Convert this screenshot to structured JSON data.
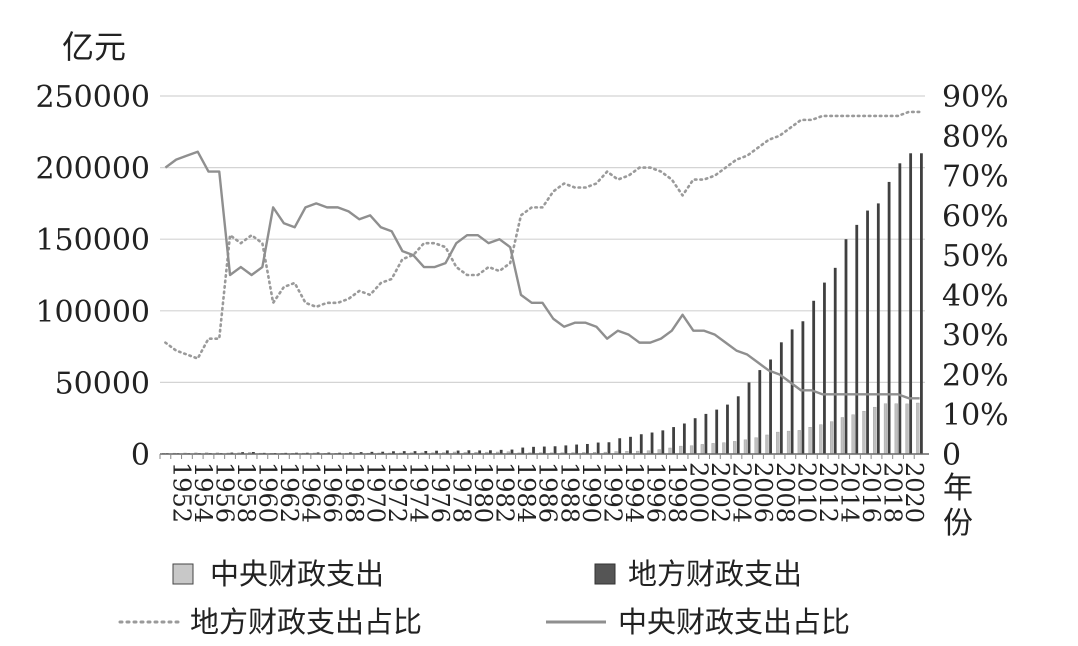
{
  "chart_data": {
    "type": "bar",
    "left_axis_unit": "亿元",
    "x_axis_unit": "年份",
    "left_ylim": [
      0,
      250000
    ],
    "right_ylim": [
      0,
      0.9
    ],
    "left_ticks": [
      "0",
      "50000",
      "100000",
      "150000",
      "200000",
      "250000"
    ],
    "right_ticks": [
      "0",
      "10%",
      "20%",
      "30%",
      "40%",
      "50%",
      "60%",
      "70%",
      "80%",
      "90%"
    ],
    "years": [
      1952,
      1953,
      1954,
      1955,
      1956,
      1957,
      1958,
      1959,
      1960,
      1961,
      1962,
      1963,
      1964,
      1965,
      1966,
      1967,
      1968,
      1969,
      1970,
      1971,
      1972,
      1973,
      1974,
      1975,
      1976,
      1977,
      1978,
      1979,
      1980,
      1981,
      1982,
      1983,
      1984,
      1985,
      1986,
      1987,
      1988,
      1989,
      1990,
      1991,
      1992,
      1993,
      1994,
      1995,
      1996,
      1997,
      1998,
      1999,
      2000,
      2001,
      2002,
      2003,
      2004,
      2005,
      2006,
      2007,
      2008,
      2009,
      2010,
      2011,
      2012,
      2013,
      2014,
      2015,
      2016,
      2017,
      2018,
      2019,
      2020,
      2021,
      2022
    ],
    "year_labels": [
      "1952",
      "1954",
      "1956",
      "1958",
      "1960",
      "1962",
      "1964",
      "1966",
      "1968",
      "1970",
      "1972",
      "1974",
      "1976",
      "1978",
      "1980",
      "1982",
      "1984",
      "1986",
      "1988",
      "1990",
      "1992",
      "1994",
      "1996",
      "1998",
      "2000",
      "2002",
      "2004",
      "2006",
      "2008",
      "2010",
      "2012",
      "2014",
      "2016",
      "2018",
      "2020"
    ],
    "grid": true,
    "legend_position": "bottom",
    "series": [
      {
        "name": "中央财政支出",
        "kind": "bar",
        "axis": "left",
        "color": "#c0c0c0",
        "values": [
          500,
          600,
          700,
          800,
          900,
          800,
          700,
          800,
          1100,
          600,
          400,
          400,
          500,
          600,
          700,
          500,
          400,
          600,
          600,
          600,
          700,
          700,
          700,
          800,
          800,
          900,
          1000,
          1400,
          1100,
          1200,
          1300,
          1400,
          1600,
          800,
          900,
          900,
          800,
          900,
          1000,
          1100,
          1200,
          1300,
          1700,
          1900,
          2000,
          2300,
          3100,
          4200,
          5500,
          5800,
          6700,
          7400,
          7900,
          8800,
          9900,
          11400,
          13300,
          15300,
          16000,
          16500,
          18700,
          20500,
          22600,
          25500,
          27400,
          29900,
          32700,
          35100,
          35100,
          35000,
          35600
        ]
      },
      {
        "name": "地方财政支出",
        "kind": "bar",
        "axis": "left",
        "color": "#404040",
        "values": [
          300,
          400,
          500,
          500,
          600,
          600,
          1000,
          1300,
          1400,
          800,
          700,
          800,
          900,
          900,
          1100,
          1000,
          900,
          1100,
          1300,
          1500,
          1600,
          1900,
          2000,
          2000,
          2100,
          2300,
          2500,
          2400,
          2600,
          2500,
          2600,
          2900,
          3100,
          4500,
          5000,
          5200,
          5400,
          6000,
          6600,
          7000,
          8000,
          8200,
          11000,
          12000,
          13800,
          15000,
          16500,
          18800,
          21300,
          25000,
          28000,
          31000,
          34500,
          40300,
          50000,
          58600,
          66000,
          78000,
          87000,
          92700,
          107000,
          119700,
          130000,
          150000,
          160000,
          170000,
          175000,
          190000,
          203000,
          210000,
          210000
        ]
      },
      {
        "name": "地方财政支出占比",
        "kind": "line",
        "axis": "right",
        "color": "#9a9a9a",
        "dash": "dotted",
        "values": [
          0.28,
          0.26,
          0.25,
          0.24,
          0.29,
          0.29,
          0.55,
          0.53,
          0.55,
          0.53,
          0.38,
          0.42,
          0.43,
          0.38,
          0.37,
          0.38,
          0.38,
          0.39,
          0.41,
          0.4,
          0.43,
          0.44,
          0.49,
          0.5,
          0.53,
          0.53,
          0.52,
          0.47,
          0.45,
          0.45,
          0.47,
          0.46,
          0.48,
          0.6,
          0.62,
          0.62,
          0.66,
          0.68,
          0.67,
          0.67,
          0.68,
          0.71,
          0.69,
          0.7,
          0.72,
          0.72,
          0.71,
          0.69,
          0.65,
          0.69,
          0.69,
          0.7,
          0.72,
          0.74,
          0.75,
          0.77,
          0.79,
          0.8,
          0.82,
          0.84,
          0.84,
          0.85,
          0.85,
          0.85,
          0.85,
          0.85,
          0.85,
          0.85,
          0.85,
          0.86,
          0.86
        ]
      },
      {
        "name": "中央财政支出占比",
        "kind": "line",
        "axis": "right",
        "color": "#8f8f8f",
        "dash": "solid",
        "values": [
          0.72,
          0.74,
          0.75,
          0.76,
          0.71,
          0.71,
          0.45,
          0.47,
          0.45,
          0.47,
          0.62,
          0.58,
          0.57,
          0.62,
          0.63,
          0.62,
          0.62,
          0.61,
          0.59,
          0.6,
          0.57,
          0.56,
          0.51,
          0.5,
          0.47,
          0.47,
          0.48,
          0.53,
          0.55,
          0.55,
          0.53,
          0.54,
          0.52,
          0.4,
          0.38,
          0.38,
          0.34,
          0.32,
          0.33,
          0.33,
          0.32,
          0.29,
          0.31,
          0.3,
          0.28,
          0.28,
          0.29,
          0.31,
          0.35,
          0.31,
          0.31,
          0.3,
          0.28,
          0.26,
          0.25,
          0.23,
          0.21,
          0.2,
          0.18,
          0.16,
          0.16,
          0.15,
          0.15,
          0.15,
          0.15,
          0.15,
          0.15,
          0.15,
          0.15,
          0.14,
          0.14
        ]
      }
    ]
  },
  "legend": [
    {
      "label": "中央财政支出",
      "swatch": "box",
      "color": "#c0c0c0"
    },
    {
      "label": "地方财政支出",
      "swatch": "box",
      "color": "#555555"
    },
    {
      "label": "地方财政支出占比",
      "swatch": "dotted",
      "color": "#9a9a9a"
    },
    {
      "label": "中央财政支出占比",
      "swatch": "solid",
      "color": "#8f8f8f"
    }
  ]
}
